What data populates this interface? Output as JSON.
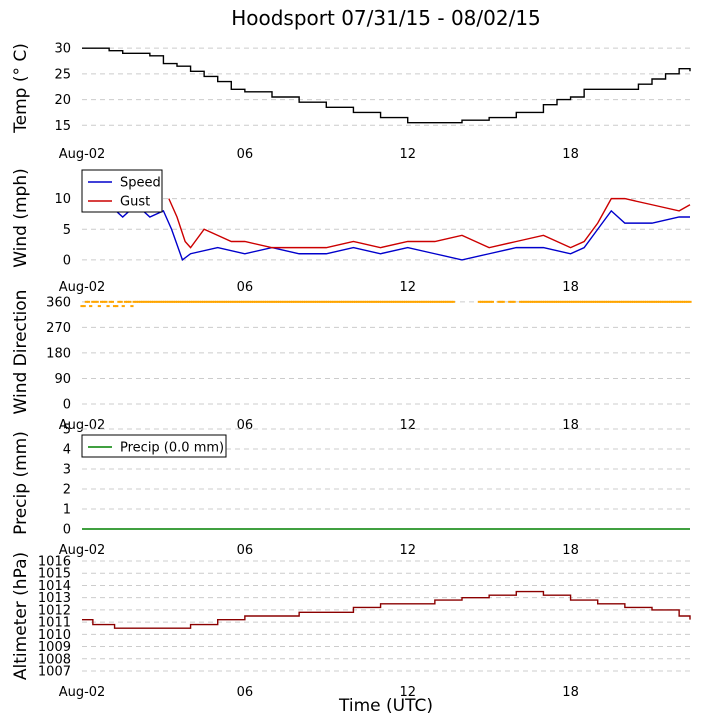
{
  "chart_data": {
    "title": "Hoodsport 07/31/15 - 08/02/15",
    "xlabel": "Time (UTC)",
    "x_ticks": [
      "Aug-02",
      "06",
      "12",
      "18"
    ],
    "x_tick_hours": [
      0,
      6,
      12,
      18
    ],
    "x_range_hours": [
      0,
      22.4
    ],
    "panels": [
      {
        "name": "temperature",
        "type": "line",
        "ylabel": "Temp (° C)",
        "ylim": [
          13.5,
          31
        ],
        "yticks": [
          15,
          20,
          25,
          30
        ],
        "grid": true,
        "legend": null,
        "series": [
          {
            "color": "#000000",
            "step": true,
            "x": [
              0,
              1,
              1.5,
              2.5,
              3,
              3.5,
              4,
              4.5,
              5,
              5.5,
              6,
              7,
              8,
              9,
              10,
              11,
              12,
              13,
              14,
              15,
              16,
              17,
              17.5,
              18,
              18.5,
              19,
              20,
              20.5,
              21,
              21.5,
              22,
              22.4
            ],
            "y": [
              30,
              29.5,
              29,
              28.5,
              27,
              26.5,
              25.5,
              24.5,
              23.5,
              22,
              21.5,
              20.5,
              19.5,
              18.5,
              17.5,
              16.5,
              15.5,
              15.5,
              16,
              16.5,
              17.5,
              19,
              20,
              20.5,
              22,
              22,
              22,
              23,
              24,
              25,
              26,
              25.5
            ]
          }
        ]
      },
      {
        "name": "wind",
        "type": "line",
        "ylabel": "Wind (mph)",
        "ylim": [
          -1,
          15
        ],
        "yticks": [
          0,
          5,
          10
        ],
        "grid": true,
        "legend": "upper-left",
        "series": [
          {
            "name": "Speed",
            "color": "#0000cc",
            "x": [
              0,
              0.5,
              1,
              1.5,
              2,
              2.5,
              3,
              3.3,
              3.7,
              4,
              5,
              6,
              7,
              8,
              9,
              10,
              11,
              12,
              13,
              14,
              15,
              16,
              17,
              18,
              18.5,
              19,
              19.5,
              20,
              21,
              22,
              22.4
            ],
            "y": [
              9,
              8,
              9,
              7,
              9,
              7,
              8,
              5,
              0,
              1,
              2,
              1,
              2,
              1,
              1,
              2,
              1,
              2,
              1,
              0,
              1,
              2,
              2,
              1,
              2,
              5,
              8,
              6,
              6,
              7,
              7
            ]
          },
          {
            "name": "Gust",
            "color": "#cc0000",
            "x": [
              3.2,
              3.5,
              3.8,
              4,
              4.5,
              5,
              5.5,
              6,
              7,
              8,
              9,
              10,
              11,
              12,
              13,
              14,
              14.5,
              15,
              16,
              17,
              18,
              18.5,
              19,
              19.5,
              20,
              21,
              22,
              22.4
            ],
            "y": [
              10,
              7,
              3,
              2,
              5,
              4,
              3,
              3,
              2,
              2,
              2,
              3,
              2,
              3,
              3,
              4,
              3,
              2,
              3,
              4,
              2,
              3,
              6,
              10,
              10,
              9,
              8,
              9
            ]
          }
        ]
      },
      {
        "name": "wind-direction",
        "type": "scatter",
        "ylabel": "Wind Direction",
        "ylim": [
          0,
          370
        ],
        "yticks": [
          0,
          90,
          180,
          270,
          360
        ],
        "grid": true,
        "legend": null,
        "series": [
          {
            "color": "#ffa500",
            "x": [
              0,
              0.3,
              0.6,
              1,
              1.3,
              1.6,
              2,
              2.5,
              3,
              4,
              6,
              8,
              10,
              12,
              14,
              16,
              18,
              20,
              22.4
            ],
            "y": [
              360,
              350,
              360,
              350,
              360,
              350,
              355,
              350,
              360,
              360,
              360,
              360,
              360,
              360,
              360,
              360,
              360,
              360,
              360
            ]
          }
        ]
      },
      {
        "name": "precip",
        "type": "line",
        "ylabel": "Precip (mm)",
        "ylim": [
          0,
          5
        ],
        "yticks": [
          0,
          1,
          2,
          3,
          4,
          5
        ],
        "grid": true,
        "legend": "upper-left",
        "series": [
          {
            "name": "Precip (0.0 mm)",
            "color": "#008000",
            "x": [
              0,
              22.4
            ],
            "y": [
              0,
              0
            ]
          }
        ]
      },
      {
        "name": "altimeter",
        "type": "line",
        "ylabel": "Altimeter (hPa)",
        "ylim": [
          1007,
          1016
        ],
        "yticks": [
          1007,
          1008,
          1009,
          1010,
          1011,
          1012,
          1013,
          1014,
          1015,
          1016
        ],
        "grid": true,
        "legend": null,
        "series": [
          {
            "color": "#8b0000",
            "step": true,
            "x": [
              0,
              0.4,
              1.2,
              2,
              3,
              4,
              5,
              6,
              7,
              8,
              9,
              10,
              11,
              12,
              13,
              14,
              15,
              16,
              16.5,
              17,
              18,
              19,
              20,
              21,
              22,
              22.4
            ],
            "y": [
              1011.2,
              1010.8,
              1010.5,
              1010.5,
              1010.5,
              1010.8,
              1011.2,
              1011.5,
              1011.5,
              1011.8,
              1011.8,
              1012.2,
              1012.5,
              1012.5,
              1012.8,
              1013,
              1013.2,
              1013.5,
              1013.5,
              1013.2,
              1012.8,
              1012.5,
              1012.2,
              1012,
              1011.5,
              1011.2
            ]
          }
        ]
      }
    ]
  }
}
